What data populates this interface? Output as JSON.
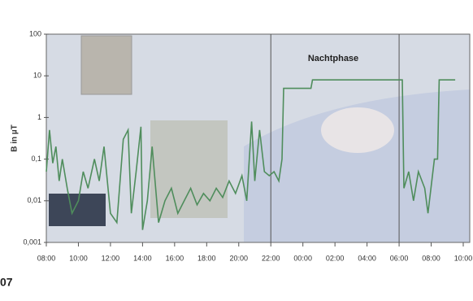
{
  "chart_data": {
    "type": "line",
    "y_label": "B in µT",
    "annotation": "Nachtphase",
    "page_fragment": "07",
    "ylog": true,
    "ylim": [
      0.001,
      100
    ],
    "yticks": [
      100,
      10,
      1,
      {
        "value": 0.1,
        "label": "0,1"
      },
      {
        "value": 0.01,
        "label": "0,01"
      },
      {
        "value": 0.001,
        "label": "0,001"
      }
    ],
    "xlim": [
      8,
      34
    ],
    "xticks": [
      {
        "value": 8,
        "label": "08:00"
      },
      {
        "value": 10,
        "label": "10:00"
      },
      {
        "value": 12,
        "label": "12:00"
      },
      {
        "value": 14,
        "label": "14:00"
      },
      {
        "value": 16,
        "label": "16:00"
      },
      {
        "value": 18,
        "label": "18:00"
      },
      {
        "value": 20,
        "label": "20:00"
      },
      {
        "value": 22,
        "label": "22:00"
      },
      {
        "value": 24,
        "label": "00:00"
      },
      {
        "value": 26,
        "label": "02:00"
      },
      {
        "value": 28,
        "label": "04:00"
      },
      {
        "value": 30,
        "label": "06:00"
      },
      {
        "value": 32,
        "label": "08:00"
      },
      {
        "value": 34,
        "label": "10:00"
      }
    ],
    "vlines": [
      22,
      30
    ],
    "color": "#4f8d5c",
    "x": [
      8.0,
      8.2,
      8.4,
      8.6,
      8.8,
      9.0,
      9.3,
      9.6,
      10.0,
      10.3,
      10.6,
      11.0,
      11.3,
      11.6,
      12.0,
      12.4,
      12.8,
      13.1,
      13.3,
      13.6,
      13.9,
      14.0,
      14.3,
      14.6,
      15.0,
      15.4,
      15.8,
      16.2,
      16.6,
      17.0,
      17.4,
      17.8,
      18.2,
      18.6,
      19.0,
      19.4,
      19.8,
      20.2,
      20.5,
      20.8,
      21.0,
      21.3,
      21.6,
      21.9,
      22.2,
      22.5,
      22.7,
      22.8,
      23.0,
      24.5,
      24.6,
      30.0,
      30.2,
      30.3,
      30.6,
      30.9,
      31.2,
      31.6,
      31.8,
      32.2,
      32.4,
      32.5,
      33.5
    ],
    "values": [
      0.05,
      0.5,
      0.08,
      0.2,
      0.03,
      0.1,
      0.02,
      0.005,
      0.01,
      0.05,
      0.02,
      0.1,
      0.03,
      0.2,
      0.005,
      0.003,
      0.3,
      0.5,
      0.005,
      0.05,
      0.6,
      0.002,
      0.01,
      0.2,
      0.003,
      0.01,
      0.02,
      0.005,
      0.01,
      0.02,
      0.008,
      0.015,
      0.01,
      0.02,
      0.012,
      0.03,
      0.015,
      0.04,
      0.01,
      0.8,
      0.03,
      0.5,
      0.05,
      0.04,
      0.05,
      0.03,
      0.1,
      5,
      5,
      5,
      8,
      8,
      8,
      0.02,
      0.05,
      0.01,
      0.05,
      0.02,
      0.005,
      0.1,
      0.1,
      8,
      8
    ]
  }
}
